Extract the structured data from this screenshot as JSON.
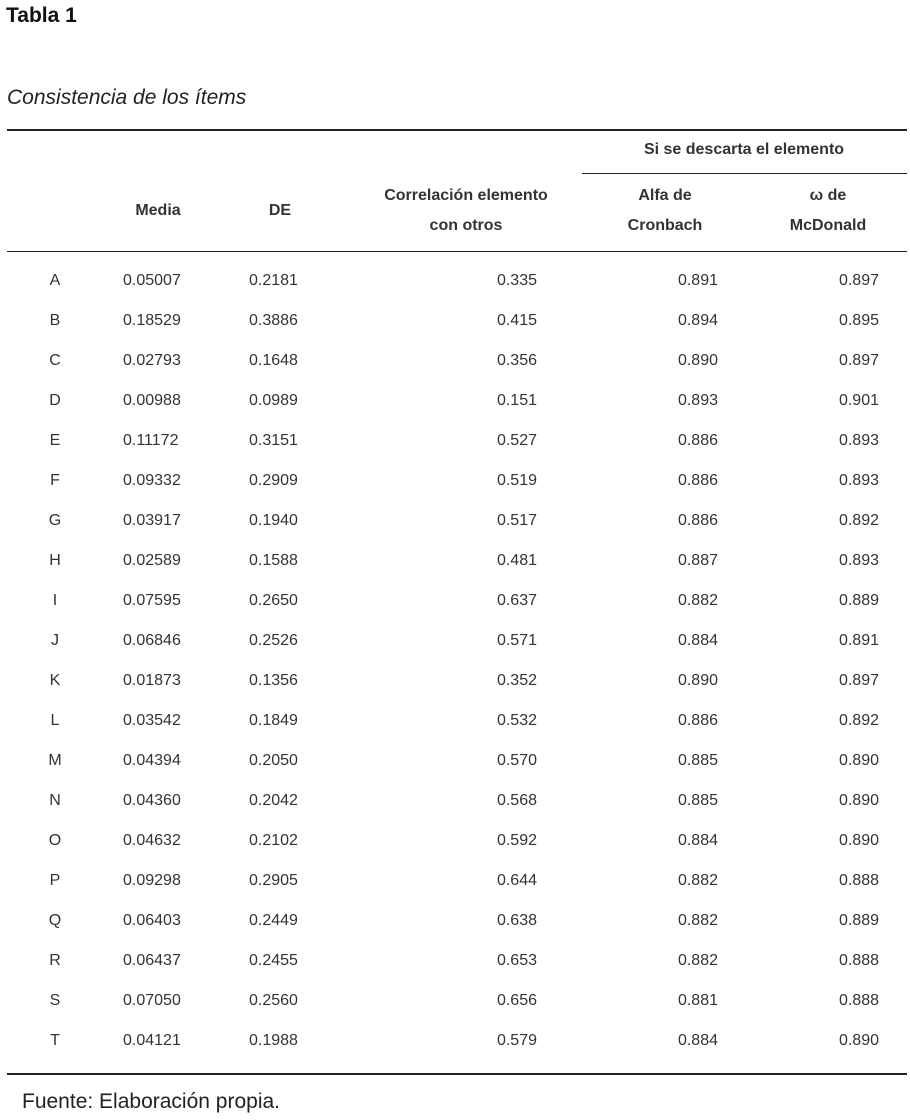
{
  "title": "Tabla 1",
  "subtitle": "Consistencia de los ítems",
  "table": {
    "group_header": "Si se descarta el elemento",
    "columns": {
      "item": "",
      "media": "Media",
      "de": "DE",
      "correlacion_1": "Correlación elemento",
      "correlacion_2": "con otros",
      "alfa_1": "Alfa de",
      "alfa_2": "Cronbach",
      "omega_1": "ω de",
      "omega_2": "McDonald"
    },
    "rows": [
      [
        "A",
        "0.05007",
        "0.2181",
        "0.335",
        "0.891",
        "0.897"
      ],
      [
        "B",
        "0.18529",
        "0.3886",
        "0.415",
        "0.894",
        "0.895"
      ],
      [
        "C",
        "0.02793",
        "0.1648",
        "0.356",
        "0.890",
        "0.897"
      ],
      [
        "D",
        "0.00988",
        "0.0989",
        "0.151",
        "0.893",
        "0.901"
      ],
      [
        "E",
        "0.11172",
        "0.3151",
        "0.527",
        "0.886",
        "0.893"
      ],
      [
        "F",
        "0.09332",
        "0.2909",
        "0.519",
        "0.886",
        "0.893"
      ],
      [
        "G",
        "0.03917",
        "0.1940",
        "0.517",
        "0.886",
        "0.892"
      ],
      [
        "H",
        "0.02589",
        "0.1588",
        "0.481",
        "0.887",
        "0.893"
      ],
      [
        "I",
        "0.07595",
        "0.2650",
        "0.637",
        "0.882",
        "0.889"
      ],
      [
        "J",
        "0.06846",
        "0.2526",
        "0.571",
        "0.884",
        "0.891"
      ],
      [
        "K",
        "0.01873",
        "0.1356",
        "0.352",
        "0.890",
        "0.897"
      ],
      [
        "L",
        "0.03542",
        "0.1849",
        "0.532",
        "0.886",
        "0.892"
      ],
      [
        "M",
        "0.04394",
        "0.2050",
        "0.570",
        "0.885",
        "0.890"
      ],
      [
        "N",
        "0.04360",
        "0.2042",
        "0.568",
        "0.885",
        "0.890"
      ],
      [
        "O",
        "0.04632",
        "0.2102",
        "0.592",
        "0.884",
        "0.890"
      ],
      [
        "P",
        "0.09298",
        "0.2905",
        "0.644",
        "0.882",
        "0.888"
      ],
      [
        "Q",
        "0.06403",
        "0.2449",
        "0.638",
        "0.882",
        "0.889"
      ],
      [
        "R",
        "0.06437",
        "0.2455",
        "0.653",
        "0.882",
        "0.888"
      ],
      [
        "S",
        "0.07050",
        "0.2560",
        "0.656",
        "0.881",
        "0.888"
      ],
      [
        "T",
        "0.04121",
        "0.1988",
        "0.579",
        "0.884",
        "0.890"
      ]
    ]
  },
  "source": "Fuente: Elaboración propia."
}
